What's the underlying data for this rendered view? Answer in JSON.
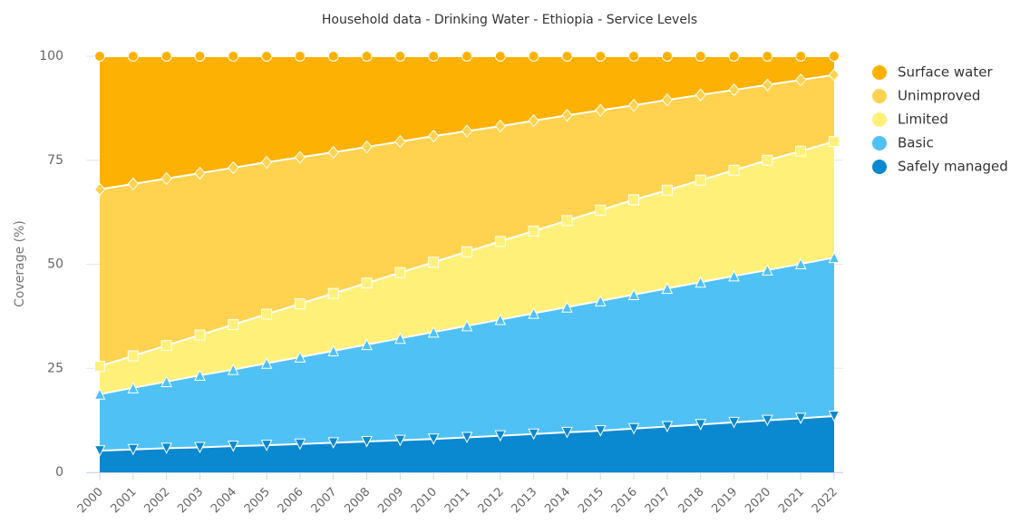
{
  "chart_data": {
    "type": "stacked_area",
    "title": "Household data - Drinking Water - Ethiopia - Service Levels",
    "y_label": "Coverage (%)",
    "categories": [
      "2000",
      "2001",
      "2002",
      "2003",
      "2004",
      "2005",
      "2006",
      "2007",
      "2008",
      "2009",
      "2010",
      "2011",
      "2012",
      "2013",
      "2014",
      "2015",
      "2016",
      "2017",
      "2018",
      "2019",
      "2020",
      "2021",
      "2022"
    ],
    "ylim": [
      0,
      100
    ],
    "yticks": [
      0,
      25,
      50,
      75,
      100
    ],
    "grid": true,
    "legend": "right",
    "series": [
      {
        "name": "Safely managed",
        "color": "#0a88d0",
        "marker": "triangle-down",
        "values": [
          5.2,
          5.5,
          5.8,
          6.0,
          6.3,
          6.5,
          6.8,
          7.1,
          7.4,
          7.7,
          8.0,
          8.4,
          8.8,
          9.2,
          9.6,
          10.0,
          10.5,
          11.0,
          11.5,
          12.0,
          12.5,
          13.0,
          13.5
        ]
      },
      {
        "name": "Basic",
        "color": "#4fc1f5",
        "marker": "triangle",
        "values": [
          13.6,
          14.8,
          16.0,
          17.3,
          18.4,
          19.7,
          20.9,
          22.1,
          23.3,
          24.5,
          25.7,
          26.8,
          27.9,
          29.0,
          30.1,
          31.2,
          32.2,
          33.2,
          34.2,
          35.2,
          36.1,
          37.1,
          38.1
        ]
      },
      {
        "name": "Limited",
        "color": "#fff07a",
        "marker": "square",
        "values": [
          6.7,
          7.7,
          8.7,
          9.7,
          10.8,
          11.8,
          12.8,
          13.8,
          14.8,
          15.8,
          16.8,
          17.8,
          18.8,
          19.8,
          20.8,
          21.8,
          22.8,
          23.6,
          24.5,
          25.4,
          26.4,
          27.1,
          27.9
        ]
      },
      {
        "name": "Unimproved",
        "color": "#ffd24f",
        "marker": "diamond",
        "values": [
          42.5,
          41.3,
          40.1,
          38.9,
          37.7,
          36.5,
          35.2,
          33.9,
          32.7,
          31.5,
          30.3,
          29.0,
          27.7,
          26.5,
          25.3,
          24.0,
          22.7,
          21.7,
          20.5,
          19.3,
          18.1,
          17.1,
          16.0
        ]
      },
      {
        "name": "Surface water",
        "color": "#fdb102",
        "marker": "circle",
        "values": [
          32.0,
          30.7,
          29.4,
          28.1,
          26.8,
          25.5,
          24.3,
          23.1,
          21.8,
          20.5,
          19.2,
          18.0,
          16.8,
          15.5,
          14.2,
          13.0,
          11.8,
          10.5,
          9.3,
          8.1,
          6.9,
          5.7,
          4.5
        ]
      }
    ]
  }
}
